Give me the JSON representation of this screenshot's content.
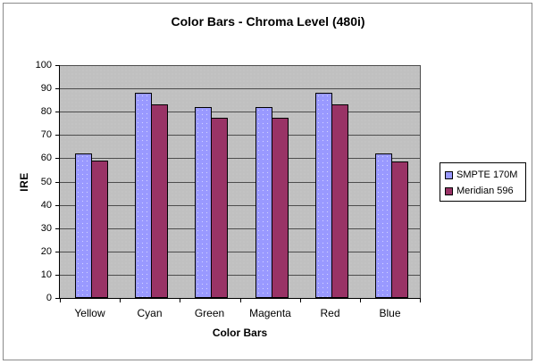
{
  "window": {
    "background": "#FFFFFF",
    "frame_border_color": "#8A8A8A"
  },
  "chart_data": {
    "type": "bar",
    "title": "Color Bars - Chroma Level (480i)",
    "xlabel": "Color Bars",
    "ylabel": "IRE",
    "categories": [
      "Yellow",
      "Cyan",
      "Green",
      "Magenta",
      "Red",
      "Blue"
    ],
    "series": [
      {
        "name": "SMPTE 170M",
        "color": "#9999FF",
        "dotted": true,
        "values": [
          62,
          88,
          82,
          82,
          88,
          62
        ]
      },
      {
        "name": "Meridian 596",
        "color": "#993366",
        "dotted": false,
        "values": [
          59,
          83,
          77.5,
          77.5,
          83,
          58.5
        ]
      }
    ],
    "ylim": [
      0,
      100
    ],
    "ytick_step": 10,
    "yticks": [
      0,
      10,
      20,
      30,
      40,
      50,
      60,
      70,
      80,
      90,
      100
    ],
    "grid": true,
    "legend_position": "right",
    "plot_bg": "#C0C0C0",
    "gridline_color": "#4D4D4D",
    "axis_color": "#000000"
  }
}
